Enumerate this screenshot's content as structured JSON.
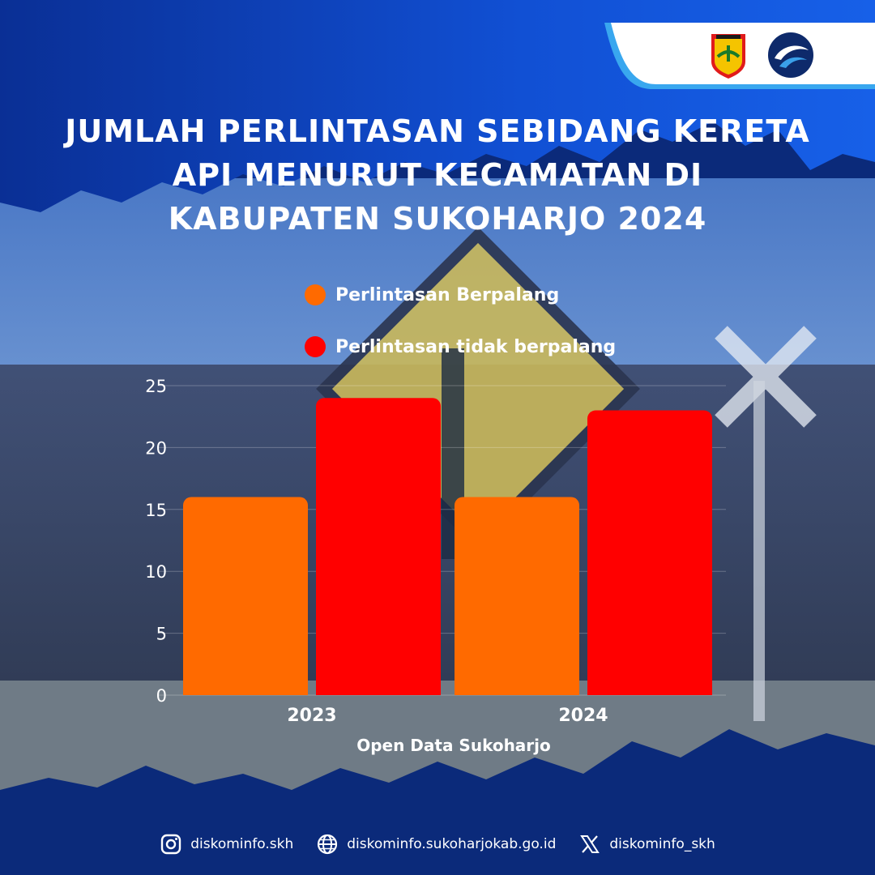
{
  "title": "JUMLAH PERLINTASAN SEBIDANG KERETA API MENURUT KECAMATAN DI KABUPATEN SUKOHARJO 2024",
  "colors": {
    "orange": "#ff6a00",
    "red": "#ff0000",
    "navy": "#0b2a7a",
    "blue": "#1a56d6"
  },
  "icons": {
    "regency_logo": "sukoharjo-regency-shield-icon",
    "ministry_logo": "kominfo-logo-icon",
    "instagram": "instagram-icon",
    "website": "globe-icon",
    "x": "x-icon"
  },
  "chart_data": {
    "type": "bar",
    "title": "JUMLAH PERLINTASAN SEBIDANG KERETA API MENURUT KECAMATAN DI KABUPATEN SUKOHARJO 2024",
    "categories": [
      "2023",
      "2024"
    ],
    "series": [
      {
        "name": "Perlintasan Berpalang",
        "values": [
          16,
          16
        ],
        "color": "#ff6a00"
      },
      {
        "name": "Perlintasan tidak berpalang",
        "values": [
          24,
          23
        ],
        "color": "#ff0000"
      }
    ],
    "ylim": [
      0,
      25
    ],
    "yticks": [
      "0",
      "5",
      "10",
      "15",
      "20",
      "25"
    ],
    "grid": true,
    "legend": "top"
  },
  "source": "Open Data Sukoharjo",
  "footer": {
    "instagram": "diskominfo.skh",
    "website": "diskominfo.sukoharjokab.go.id",
    "x": "diskominfo_skh"
  }
}
